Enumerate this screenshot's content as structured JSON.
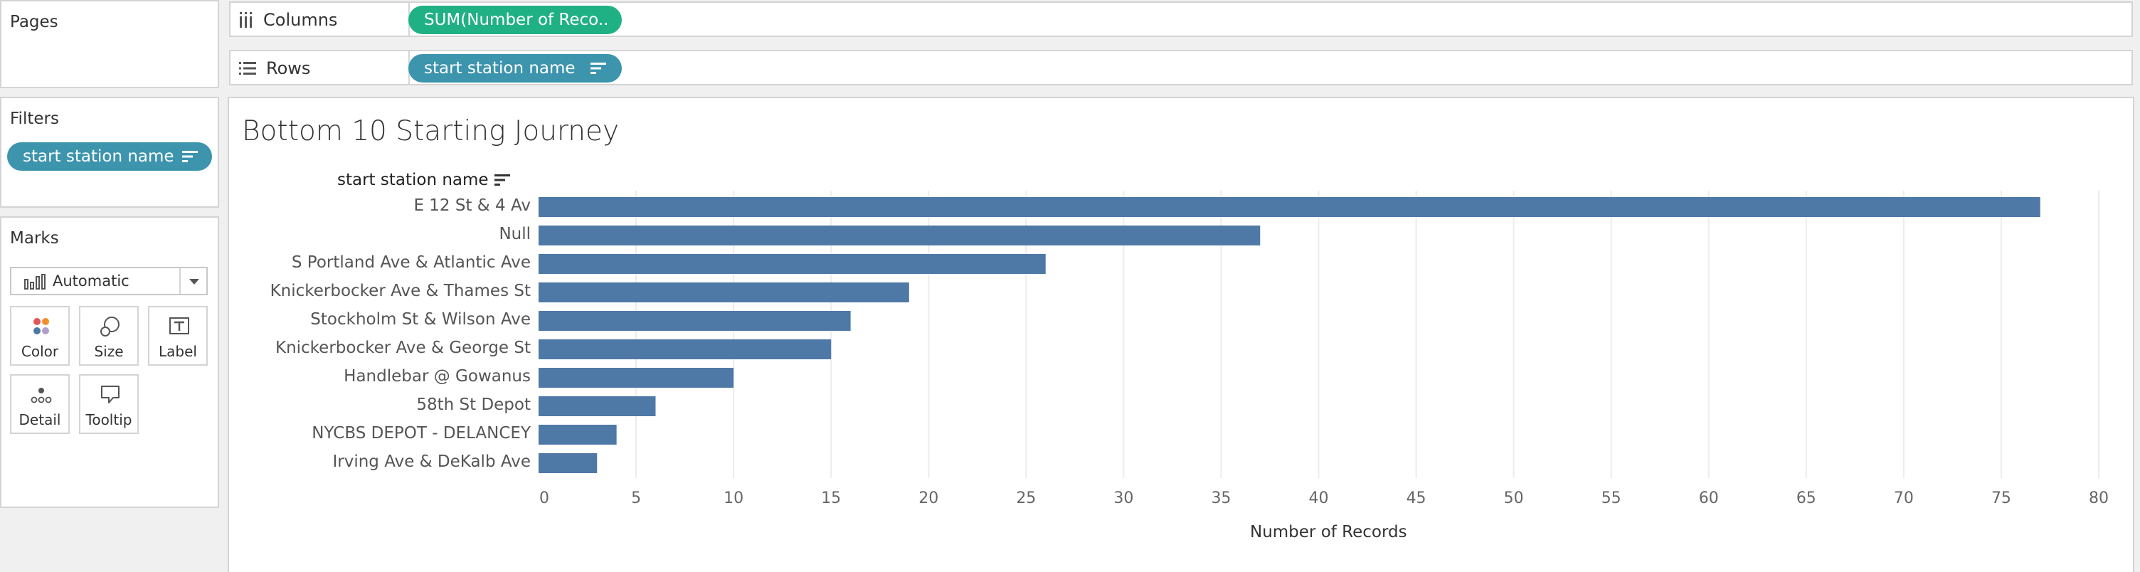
{
  "pages_panel": {
    "title": "Pages"
  },
  "filters_panel": {
    "title": "Filters",
    "pill": "start station name"
  },
  "marks_panel": {
    "title": "Marks",
    "mark_type": "Automatic",
    "buttons": [
      {
        "label": "Color",
        "icon": "color-dots-icon"
      },
      {
        "label": "Size",
        "icon": "size-circles-icon"
      },
      {
        "label": "Label",
        "icon": "label-t-icon"
      },
      {
        "label": "Detail",
        "icon": "detail-dots-icon"
      },
      {
        "label": "Tooltip",
        "icon": "tooltip-bubble-icon"
      }
    ]
  },
  "shelves": {
    "columns": {
      "label": "Columns",
      "pill": "SUM(Number of Reco.."
    },
    "rows": {
      "label": "Rows",
      "pill": "start station name"
    }
  },
  "colors": {
    "bar": "#4e79a7",
    "pill_measure": "#1fb184",
    "pill_dimension": "#3c94ad"
  },
  "chart_data": {
    "type": "bar",
    "orientation": "horizontal",
    "title": "Bottom 10 Starting Journey",
    "ylabel": "start station name",
    "xlabel": "Number of Records",
    "categories": [
      "E 12 St & 4 Av",
      "Null",
      "S Portland Ave & Atlantic Ave",
      "Knickerbocker Ave & Thames St",
      "Stockholm St & Wilson Ave",
      "Knickerbocker Ave & George St",
      "Handlebar @ Gowanus",
      "58th St Depot",
      "NYCBS DEPOT - DELANCEY",
      "Irving Ave & DeKalb Ave"
    ],
    "values": [
      77,
      37,
      26,
      19,
      16,
      15,
      10,
      6,
      4,
      3
    ],
    "xlim": [
      0,
      80
    ],
    "xticks": [
      "0",
      "5",
      "10",
      "15",
      "20",
      "25",
      "30",
      "35",
      "40",
      "45",
      "50",
      "55",
      "60",
      "65",
      "70",
      "75",
      "80"
    ],
    "grid": true
  }
}
